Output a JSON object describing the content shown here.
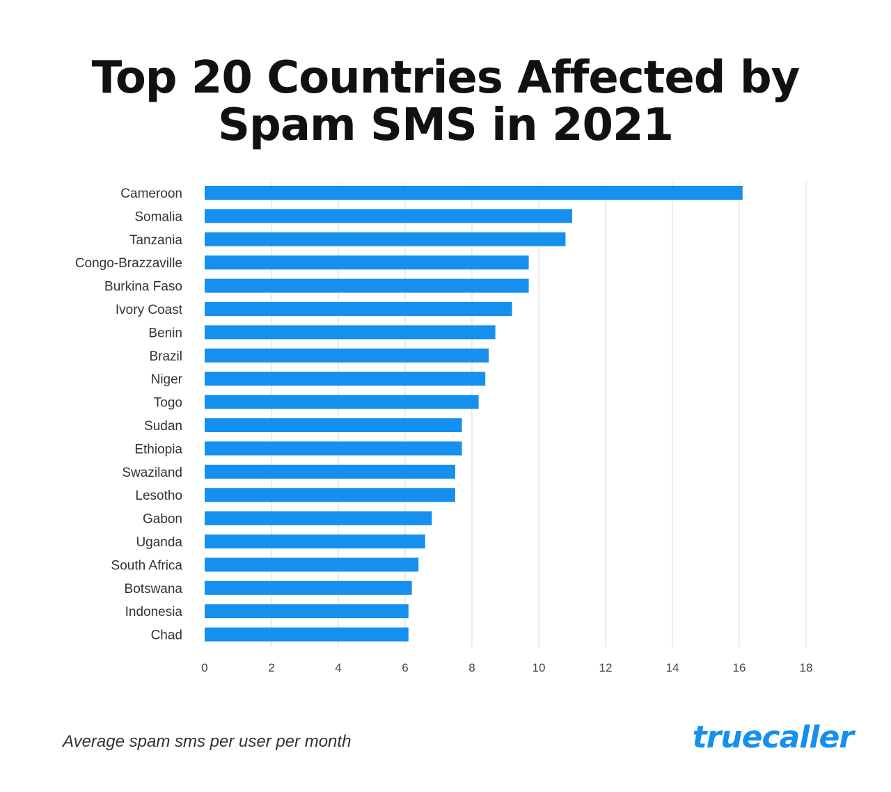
{
  "header": {
    "title_line1": "Top 20 Countries Affected by",
    "title_line2": "Spam SMS in 2021"
  },
  "footer": {
    "note": "Average spam sms per user per month",
    "brand": "truecaller"
  },
  "colors": {
    "bar": "#1590ee",
    "grid": "#e6e6e6",
    "brand": "#1590ee"
  },
  "chart_data": {
    "type": "bar",
    "orientation": "horizontal",
    "categories": [
      "Cameroon",
      "Somalia",
      "Tanzania",
      "Congo-Brazzaville",
      "Burkina Faso",
      "Ivory Coast",
      "Benin",
      "Brazil",
      "Niger",
      "Togo",
      "Sudan",
      "Ethiopia",
      "Swaziland",
      "Lesotho",
      "Gabon",
      "Uganda",
      "South Africa",
      "Botswana",
      "Indonesia",
      "Chad"
    ],
    "values": [
      16.1,
      11.0,
      10.8,
      9.7,
      9.7,
      9.2,
      8.7,
      8.5,
      8.4,
      8.2,
      7.7,
      7.7,
      7.5,
      7.5,
      6.8,
      6.6,
      6.4,
      6.2,
      6.1,
      6.1
    ],
    "title": "Top 20 Countries Affected by Spam SMS in 2021",
    "xlabel": "Average spam sms per user per month",
    "ylabel": "",
    "xlim": [
      0,
      18
    ],
    "xticks": [
      0,
      2,
      4,
      6,
      8,
      10,
      12,
      14,
      16,
      18
    ],
    "grid": true,
    "legend": "none"
  }
}
